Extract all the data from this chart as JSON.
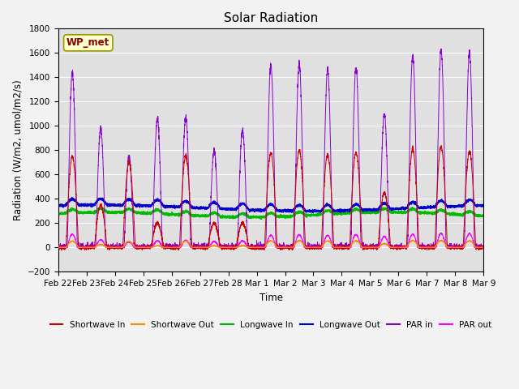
{
  "title": "Solar Radiation",
  "ylabel": "Radiation (W/m2, umol/m2/s)",
  "xlabel": "Time",
  "ylim": [
    -200,
    1800
  ],
  "yticks": [
    -200,
    0,
    200,
    400,
    600,
    800,
    1000,
    1200,
    1400,
    1600,
    1800
  ],
  "n_days": 15,
  "n_points_per_day": 288,
  "series": {
    "shortwave_in": {
      "color": "#cc0000",
      "label": "Shortwave In"
    },
    "shortwave_out": {
      "color": "#ff8800",
      "label": "Shortwave Out"
    },
    "longwave_in": {
      "color": "#00bb00",
      "label": "Longwave In"
    },
    "longwave_out": {
      "color": "#0000cc",
      "label": "Longwave Out"
    },
    "par_in": {
      "color": "#8800cc",
      "label": "PAR in"
    },
    "par_out": {
      "color": "#ff00ff",
      "label": "PAR out"
    }
  },
  "annotation_text": "WP_met",
  "bg_color": "#e0e0e0",
  "grid_color": "#ffffff",
  "fig_bg": "#f2f2f2",
  "tick_labels": [
    "Feb 22",
    "Feb 23",
    "Feb 24",
    "Feb 25",
    "Feb 26",
    "Feb 27",
    "Feb 28",
    "Mar 1",
    "Mar 2",
    "Mar 3",
    "Mar 4",
    "Mar 5",
    "Mar 6",
    "Mar 7",
    "Mar 8",
    "Mar 9"
  ]
}
